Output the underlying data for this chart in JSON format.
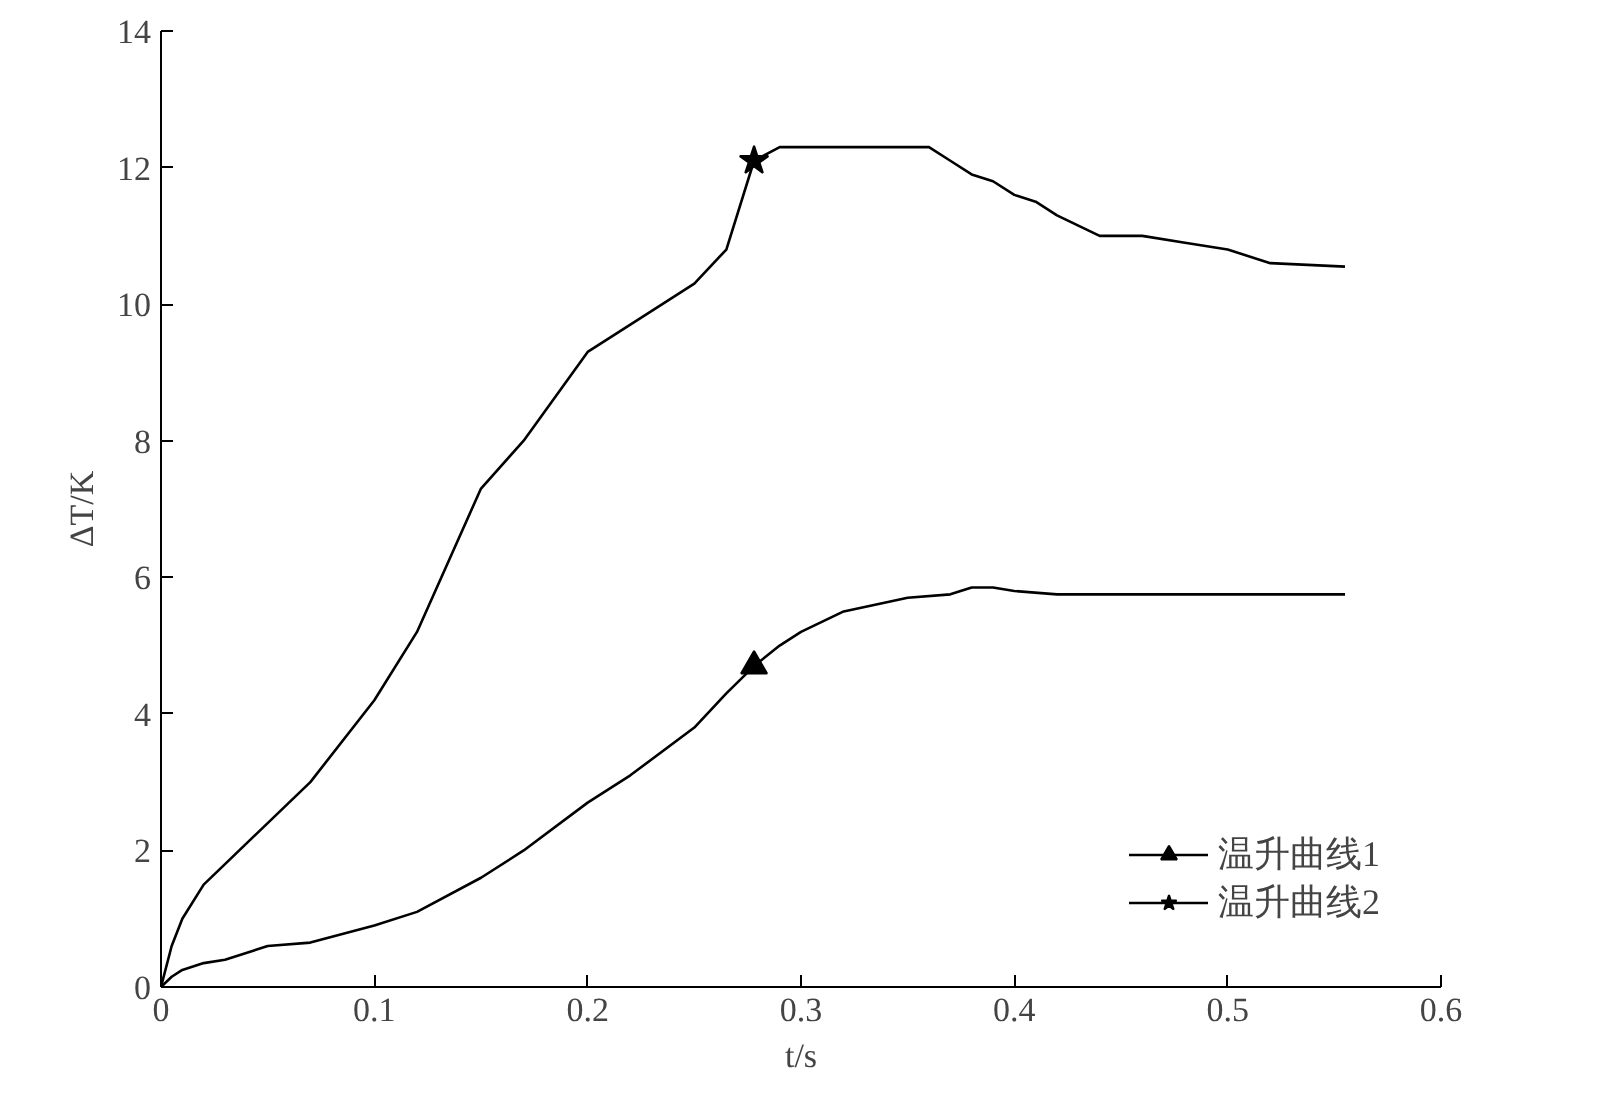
{
  "chart_data": {
    "type": "line",
    "xlabel": "t/s",
    "ylabel": "ΔT/K",
    "xlim": [
      0,
      0.6
    ],
    "ylim": [
      0,
      14
    ],
    "xticks": [
      0,
      0.1,
      0.2,
      0.3,
      0.4,
      0.5,
      0.6
    ],
    "yticks": [
      0,
      2,
      4,
      6,
      8,
      10,
      12,
      14
    ],
    "grid": false,
    "legend": "bottom right",
    "line_style": "solid",
    "series": [
      {
        "name": "温升曲线1",
        "color": "#000000",
        "x": [
          0,
          0.005,
          0.01,
          0.02,
          0.03,
          0.05,
          0.07,
          0.1,
          0.12,
          0.15,
          0.17,
          0.2,
          0.22,
          0.25,
          0.265,
          0.278,
          0.29,
          0.3,
          0.32,
          0.35,
          0.37,
          0.38,
          0.39,
          0.4,
          0.42,
          0.45,
          0.5,
          0.555
        ],
        "values": [
          0,
          0.15,
          0.25,
          0.35,
          0.4,
          0.6,
          0.65,
          0.9,
          1.1,
          1.6,
          2.0,
          2.7,
          3.1,
          3.8,
          4.3,
          4.7,
          5.0,
          5.2,
          5.5,
          5.7,
          5.75,
          5.85,
          5.85,
          5.8,
          5.75,
          5.75,
          5.75,
          5.75
        ]
      },
      {
        "type": "scatter",
        "marker": "triangle",
        "color": "#000000",
        "x": [
          0.278
        ],
        "values": [
          4.7
        ]
      },
      {
        "name": "温升曲线2",
        "color": "#000000",
        "x": [
          0,
          0.005,
          0.01,
          0.02,
          0.03,
          0.05,
          0.07,
          0.1,
          0.12,
          0.15,
          0.17,
          0.2,
          0.22,
          0.25,
          0.265,
          0.278,
          0.29,
          0.3,
          0.33,
          0.36,
          0.37,
          0.38,
          0.39,
          0.4,
          0.41,
          0.42,
          0.44,
          0.46,
          0.48,
          0.5,
          0.52,
          0.555
        ],
        "values": [
          0,
          0.6,
          1.0,
          1.5,
          1.8,
          2.4,
          3.0,
          4.2,
          5.2,
          7.3,
          8.0,
          9.3,
          9.7,
          10.3,
          10.8,
          12.1,
          12.3,
          12.3,
          12.3,
          12.3,
          12.1,
          11.9,
          11.8,
          11.6,
          11.5,
          11.3,
          11.0,
          11.0,
          10.9,
          10.8,
          10.6,
          10.55
        ]
      },
      {
        "type": "scatter",
        "marker": "star",
        "color": "#000000",
        "x": [
          0.278
        ],
        "values": [
          12.1
        ]
      }
    ]
  }
}
